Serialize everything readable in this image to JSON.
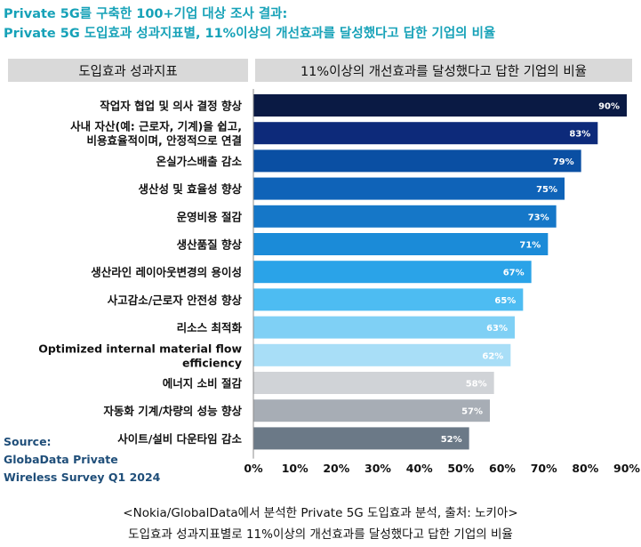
{
  "title_line1": "Private 5G를 구축한 100+기업 대상 조사 결과:",
  "title_line2": "Private 5G 도입효과 성과지표별, 11%이상의 개선효과를 달성했다고 답한 기업의 비율",
  "header_left": "도입효과 성과지표",
  "header_right": "11%이상의 개선효과를 달성했다고 답한 기업의 비율",
  "source_lines": [
    "Source:",
    "GlobaData Private",
    "Wireless Survey Q1 2024"
  ],
  "caption_line1": "<Nokia/GlobalData에서 분석한 Private 5G 도입효과 분석, 출처: 노키아>",
  "caption_line2": "도입효과 성과지표별로 11%이상의 개선효과를 달성했다고 답한 기업의 비율",
  "chart_data": {
    "type": "bar",
    "orientation": "horizontal",
    "categories": [
      "작업자 협업 및 의사 결정 향상",
      "사내 자산(예: 근로자, 기계)을 쉽고,\n비용효율적이며, 안정적으로 연결",
      "온실가스배출 감소",
      "생산성 및 효율성 향상",
      "운영비용 절감",
      "생산품질 향상",
      "생산라인 레이아웃변경의 용이성",
      "사고감소/근로자 안전성 향상",
      "리소스 최적화",
      "Optimized internal material flow\nefficiency",
      "에너지 소비 절감",
      "자동화 기계/차량의 성능 향상",
      "사이트/설비 다운타임 감소"
    ],
    "values": [
      90,
      83,
      79,
      75,
      73,
      71,
      67,
      65,
      63,
      62,
      58,
      57,
      52
    ],
    "value_labels": [
      "90%",
      "83%",
      "79%",
      "75%",
      "73%",
      "71%",
      "67%",
      "65%",
      "63%",
      "62%",
      "58%",
      "57%",
      "52%"
    ],
    "colors": [
      "#0a1a44",
      "#0d2a7a",
      "#0a4fa3",
      "#0f63b8",
      "#1577c8",
      "#1b8bd8",
      "#2aa3e8",
      "#4dbcf2",
      "#7fd0f5",
      "#a8def7",
      "#d0d3d7",
      "#a7adb5",
      "#6b7987"
    ],
    "label_colors": [
      "#ffffff",
      "#ffffff",
      "#ffffff",
      "#ffffff",
      "#ffffff",
      "#ffffff",
      "#ffffff",
      "#ffffff",
      "#ffffff",
      "#ffffff",
      "#ffffff",
      "#ffffff",
      "#ffffff"
    ],
    "xlim": [
      0,
      90
    ],
    "xticks": [
      0,
      10,
      20,
      30,
      40,
      50,
      60,
      70,
      80,
      90
    ],
    "xtick_labels": [
      "0%",
      "10%",
      "20%",
      "30%",
      "40%",
      "50%",
      "60%",
      "70%",
      "80%",
      "90%"
    ],
    "grid": false
  }
}
